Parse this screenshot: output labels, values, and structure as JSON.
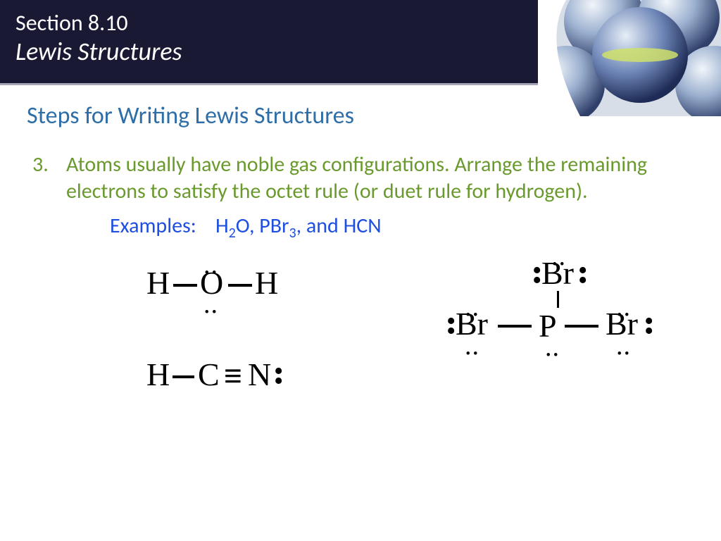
{
  "header": {
    "section_number": "Section 8.10",
    "section_title": "Lewis Structures",
    "bg_color": "#191933",
    "text_color": "#ffffff",
    "underline_color": "#a6a6b8"
  },
  "page_title": "Steps for Writing Lewis Structures",
  "title_color": "#2e6ea8",
  "step": {
    "number": "3.",
    "text": "Atoms usually have noble gas configurations. Arrange the remaining electrons to satisfy the octet rule (or duet rule for hydrogen).",
    "color": "#6a9a2d",
    "fontsize": 30
  },
  "examples": {
    "label": "Examples:",
    "items_html": "H<sub>2</sub>O, PBr<sub>3</sub>, and HCN",
    "color": "#1f4fe0"
  },
  "chem": {
    "font": "Times New Roman",
    "atom_fontsize": 46,
    "dot_fontsize": 38,
    "atoms": {
      "H1": "H",
      "O": "O",
      "H2": "H",
      "H3": "H",
      "C": "C",
      "N": "N",
      "Br_top": "Br",
      "Br_left": "Br",
      "P": "P",
      "Br_right": "Br"
    },
    "bonds": {
      "single_h": "−",
      "triple": "≡"
    },
    "lone_pair_h": "..",
    "lone_pair_v_top": "•",
    "lone_pair_v_bot": "•"
  }
}
